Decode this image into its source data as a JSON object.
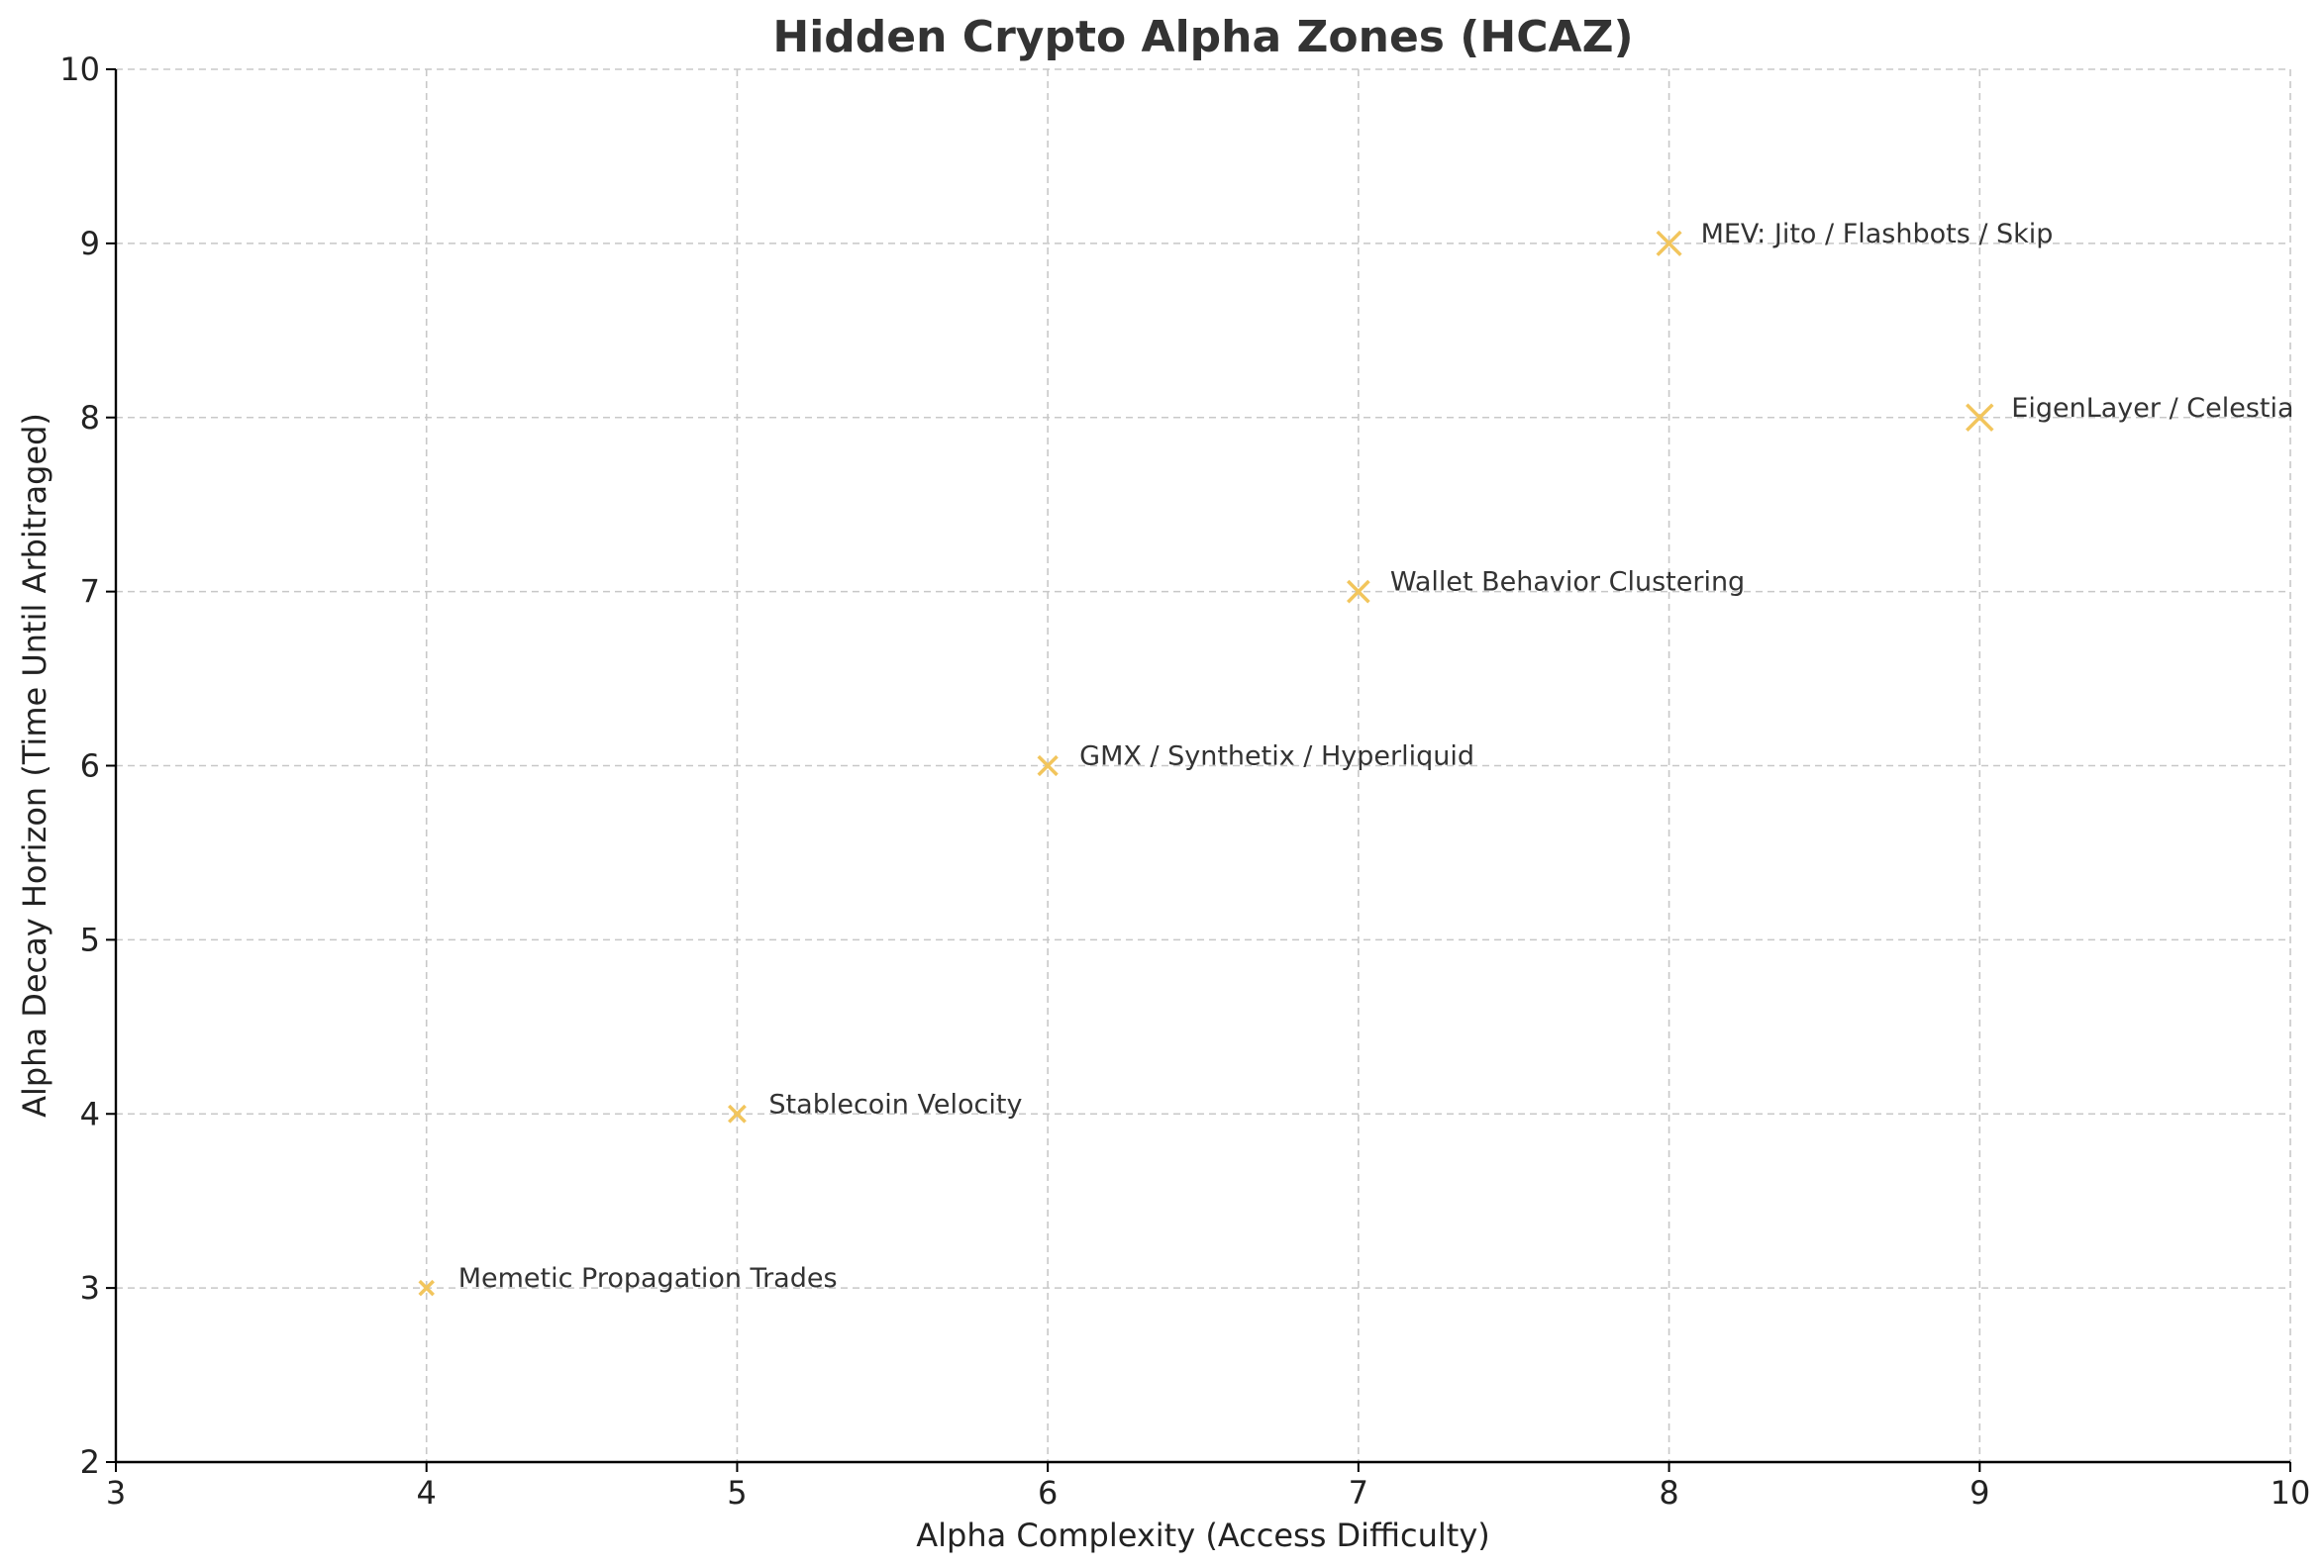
{
  "chart_data": {
    "type": "scatter",
    "title": "Hidden Crypto Alpha Zones (HCAZ)",
    "xlabel": "Alpha Complexity (Access Difficulty)",
    "ylabel": "Alpha Decay Horizon (Time Until Arbitraged)",
    "xlim": [
      3,
      10
    ],
    "ylim": [
      2,
      10
    ],
    "xticks": [
      "3",
      "4",
      "5",
      "6",
      "7",
      "8",
      "9",
      "10"
    ],
    "yticks": [
      "2",
      "3",
      "4",
      "5",
      "6",
      "7",
      "8",
      "9",
      "10"
    ],
    "grid": true,
    "marker": "x",
    "marker_color": "#f2c55c",
    "points": [
      {
        "label": "Memetic Propagation Trades",
        "x": 4,
        "y": 3
      },
      {
        "label": "Stablecoin Velocity",
        "x": 5,
        "y": 4
      },
      {
        "label": "GMX / Synthetix / Hyperliquid",
        "x": 6,
        "y": 6
      },
      {
        "label": "Wallet Behavior Clustering",
        "x": 7,
        "y": 7
      },
      {
        "label": "MEV: Jito / Flashbots / Skip",
        "x": 8,
        "y": 9
      },
      {
        "label": "EigenLayer / Celestia",
        "x": 9,
        "y": 8
      }
    ]
  }
}
